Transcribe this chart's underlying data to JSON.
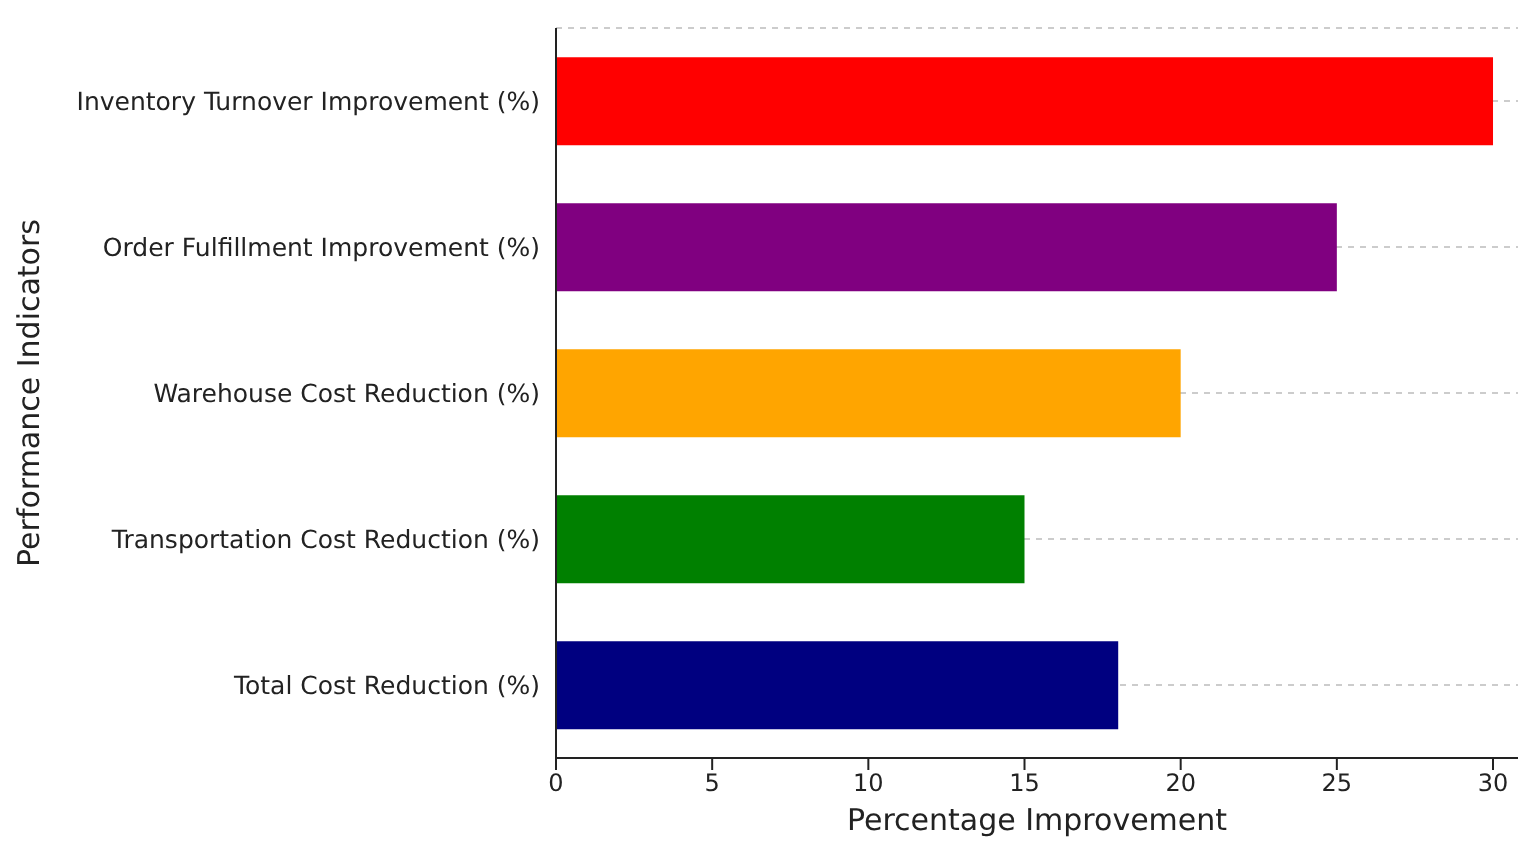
{
  "chart_data": {
    "type": "bar",
    "orientation": "horizontal",
    "xlabel": "Percentage Improvement",
    "ylabel": "Performance Indicators",
    "categories": [
      "Inventory Turnover Improvement (%)",
      "Order Fulfillment Improvement (%)",
      "Warehouse Cost Reduction (%)",
      "Transportation Cost Reduction (%)",
      "Total Cost Reduction (%)"
    ],
    "values": [
      30,
      25,
      20,
      15,
      18
    ],
    "colors": [
      "#ff0000",
      "#800080",
      "#ffa500",
      "#008000",
      "#000080"
    ],
    "xlim": [
      0,
      30.8
    ],
    "xticks": [
      0,
      5,
      10,
      15,
      20,
      25,
      30
    ],
    "grid": "y"
  }
}
